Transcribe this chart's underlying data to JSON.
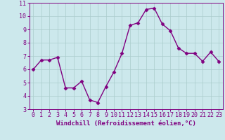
{
  "x": [
    0,
    1,
    2,
    3,
    4,
    5,
    6,
    7,
    8,
    9,
    10,
    11,
    12,
    13,
    14,
    15,
    16,
    17,
    18,
    19,
    20,
    21,
    22,
    23
  ],
  "y": [
    6.0,
    6.7,
    6.7,
    6.9,
    4.6,
    4.6,
    5.1,
    3.7,
    3.5,
    4.7,
    5.8,
    7.2,
    9.3,
    9.5,
    10.5,
    10.6,
    9.4,
    8.9,
    7.6,
    7.2,
    7.2,
    6.6,
    7.3,
    6.6
  ],
  "line_color": "#800080",
  "marker": "D",
  "marker_size": 2.5,
  "bg_color": "#cce8ec",
  "grid_color": "#aacccc",
  "xlabel": "Windchill (Refroidissement éolien,°C)",
  "ylim": [
    3,
    11
  ],
  "xlim": [
    -0.5,
    23.5
  ],
  "yticks": [
    3,
    4,
    5,
    6,
    7,
    8,
    9,
    10,
    11
  ],
  "xticks": [
    0,
    1,
    2,
    3,
    4,
    5,
    6,
    7,
    8,
    9,
    10,
    11,
    12,
    13,
    14,
    15,
    16,
    17,
    18,
    19,
    20,
    21,
    22,
    23
  ],
  "tick_color": "#800080",
  "label_color": "#800080",
  "xlabel_fontsize": 6.5,
  "tick_fontsize": 6.0,
  "linewidth": 1.0
}
